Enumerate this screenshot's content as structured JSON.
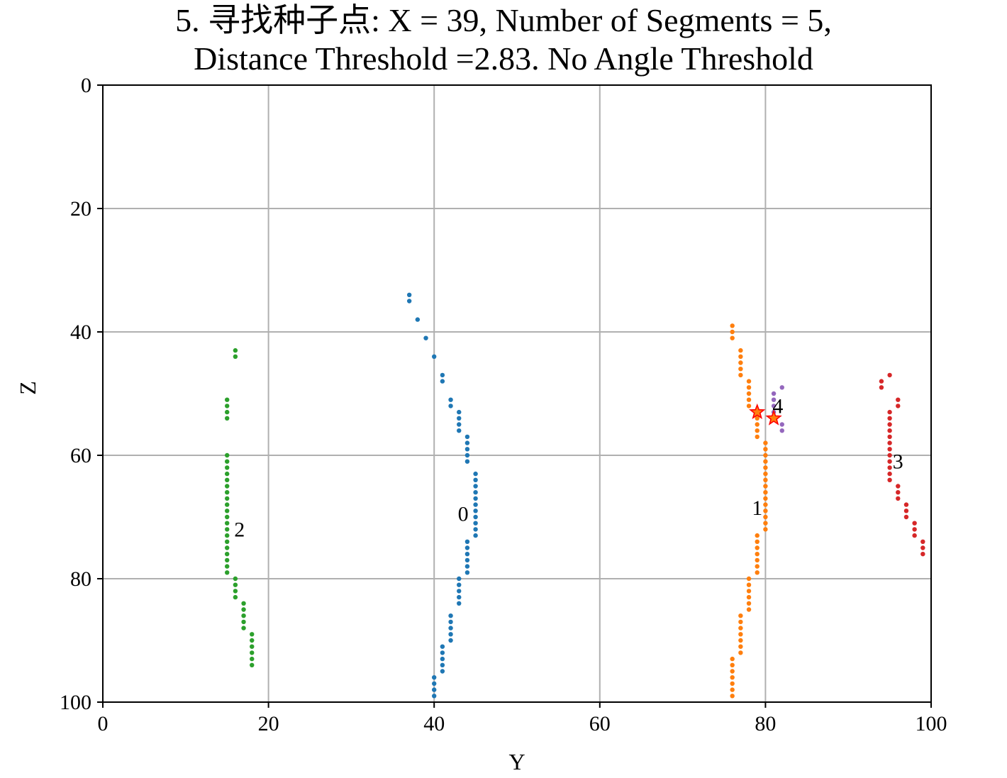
{
  "chart_data": {
    "type": "scatter",
    "title": "5. 寻找种子点: X = 39, Number of Segments = 5,",
    "subtitle": "Distance Threshold =2.83. No Angle Threshold",
    "xlabel": "Y",
    "ylabel": "Z",
    "xlim": [
      0,
      100
    ],
    "ylim": [
      0,
      100
    ],
    "y_inverted": true,
    "grid": true,
    "x_ticks": [
      "0",
      "20",
      "40",
      "60",
      "80",
      "100"
    ],
    "y_ticks": [
      "0",
      "20",
      "40",
      "60",
      "80",
      "100"
    ],
    "series": [
      {
        "label": "0",
        "color": "#1f77b4",
        "label_pos": [
          43.5,
          69.5
        ],
        "points": [
          [
            37,
            34
          ],
          [
            37,
            35
          ],
          [
            38,
            38
          ],
          [
            39,
            41
          ],
          [
            40,
            44
          ],
          [
            41,
            47
          ],
          [
            41,
            48
          ],
          [
            42,
            51
          ],
          [
            42,
            52
          ],
          [
            43,
            53
          ],
          [
            43,
            54
          ],
          [
            43,
            55
          ],
          [
            43,
            56
          ],
          [
            44,
            57
          ],
          [
            44,
            58
          ],
          [
            44,
            59
          ],
          [
            44,
            60
          ],
          [
            44,
            61
          ],
          [
            45,
            63
          ],
          [
            45,
            64
          ],
          [
            45,
            65
          ],
          [
            45,
            66
          ],
          [
            45,
            67
          ],
          [
            45,
            68
          ],
          [
            45,
            69
          ],
          [
            45,
            70
          ],
          [
            45,
            71
          ],
          [
            45,
            72
          ],
          [
            45,
            73
          ],
          [
            44,
            74
          ],
          [
            44,
            75
          ],
          [
            44,
            76
          ],
          [
            44,
            77
          ],
          [
            44,
            78
          ],
          [
            44,
            79
          ],
          [
            43,
            80
          ],
          [
            43,
            81
          ],
          [
            43,
            82
          ],
          [
            43,
            83
          ],
          [
            43,
            84
          ],
          [
            42,
            86
          ],
          [
            42,
            87
          ],
          [
            42,
            88
          ],
          [
            42,
            89
          ],
          [
            42,
            90
          ],
          [
            41,
            91
          ],
          [
            41,
            92
          ],
          [
            41,
            93
          ],
          [
            41,
            94
          ],
          [
            41,
            95
          ],
          [
            40,
            96
          ],
          [
            40,
            97
          ],
          [
            40,
            98
          ],
          [
            40,
            99
          ]
        ]
      },
      {
        "label": "1",
        "color": "#ff7f0e",
        "label_pos": [
          79,
          68.5
        ],
        "points": [
          [
            76,
            39
          ],
          [
            76,
            40
          ],
          [
            76,
            41
          ],
          [
            77,
            43
          ],
          [
            77,
            44
          ],
          [
            77,
            45
          ],
          [
            77,
            46
          ],
          [
            77,
            47
          ],
          [
            78,
            48
          ],
          [
            78,
            49
          ],
          [
            78,
            50
          ],
          [
            78,
            51
          ],
          [
            78,
            52
          ],
          [
            79,
            54
          ],
          [
            79,
            55
          ],
          [
            79,
            56
          ],
          [
            79,
            57
          ],
          [
            80,
            58
          ],
          [
            80,
            59
          ],
          [
            80,
            60
          ],
          [
            80,
            61
          ],
          [
            80,
            62
          ],
          [
            80,
            63
          ],
          [
            80,
            64
          ],
          [
            80,
            65
          ],
          [
            80,
            66
          ],
          [
            80,
            67
          ],
          [
            80,
            68
          ],
          [
            80,
            69
          ],
          [
            80,
            70
          ],
          [
            80,
            71
          ],
          [
            80,
            72
          ],
          [
            79,
            73
          ],
          [
            79,
            74
          ],
          [
            79,
            75
          ],
          [
            79,
            76
          ],
          [
            79,
            77
          ],
          [
            79,
            78
          ],
          [
            79,
            79
          ],
          [
            78,
            80
          ],
          [
            78,
            81
          ],
          [
            78,
            82
          ],
          [
            78,
            83
          ],
          [
            78,
            84
          ],
          [
            78,
            85
          ],
          [
            77,
            86
          ],
          [
            77,
            87
          ],
          [
            77,
            88
          ],
          [
            77,
            89
          ],
          [
            77,
            90
          ],
          [
            77,
            91
          ],
          [
            77,
            92
          ],
          [
            76,
            93
          ],
          [
            76,
            94
          ],
          [
            76,
            95
          ],
          [
            76,
            96
          ],
          [
            76,
            97
          ],
          [
            76,
            98
          ],
          [
            76,
            99
          ]
        ]
      },
      {
        "label": "2",
        "color": "#2ca02c",
        "label_pos": [
          16.5,
          72
        ],
        "points": [
          [
            16,
            43
          ],
          [
            16,
            44
          ],
          [
            15,
            51
          ],
          [
            15,
            52
          ],
          [
            15,
            53
          ],
          [
            15,
            54
          ],
          [
            15,
            60
          ],
          [
            15,
            61
          ],
          [
            15,
            62
          ],
          [
            15,
            63
          ],
          [
            15,
            64
          ],
          [
            15,
            65
          ],
          [
            15,
            66
          ],
          [
            15,
            67
          ],
          [
            15,
            68
          ],
          [
            15,
            69
          ],
          [
            15,
            70
          ],
          [
            15,
            71
          ],
          [
            15,
            72
          ],
          [
            15,
            73
          ],
          [
            15,
            74
          ],
          [
            15,
            75
          ],
          [
            15,
            76
          ],
          [
            15,
            77
          ],
          [
            15,
            78
          ],
          [
            15,
            79
          ],
          [
            16,
            80
          ],
          [
            16,
            81
          ],
          [
            16,
            82
          ],
          [
            16,
            83
          ],
          [
            17,
            84
          ],
          [
            17,
            85
          ],
          [
            17,
            86
          ],
          [
            17,
            87
          ],
          [
            17,
            88
          ],
          [
            18,
            89
          ],
          [
            18,
            90
          ],
          [
            18,
            91
          ],
          [
            18,
            92
          ],
          [
            18,
            93
          ],
          [
            18,
            94
          ]
        ]
      },
      {
        "label": "3",
        "color": "#d62728",
        "label_pos": [
          96,
          61
        ],
        "points": [
          [
            94,
            48
          ],
          [
            94,
            49
          ],
          [
            95,
            47
          ],
          [
            96,
            51
          ],
          [
            96,
            52
          ],
          [
            95,
            53
          ],
          [
            95,
            54
          ],
          [
            95,
            55
          ],
          [
            95,
            56
          ],
          [
            95,
            57
          ],
          [
            95,
            58
          ],
          [
            95,
            59
          ],
          [
            95,
            60
          ],
          [
            95,
            61
          ],
          [
            95,
            62
          ],
          [
            95,
            63
          ],
          [
            95,
            64
          ],
          [
            96,
            65
          ],
          [
            96,
            66
          ],
          [
            96,
            67
          ],
          [
            97,
            68
          ],
          [
            97,
            69
          ],
          [
            97,
            70
          ],
          [
            98,
            71
          ],
          [
            98,
            72
          ],
          [
            98,
            73
          ],
          [
            99,
            74
          ],
          [
            99,
            75
          ],
          [
            99,
            76
          ]
        ]
      },
      {
        "label": "4",
        "color": "#9467bd",
        "label_pos": [
          81.5,
          52
        ],
        "points": [
          [
            81,
            50
          ],
          [
            81,
            51
          ],
          [
            81,
            52
          ],
          [
            81,
            53
          ],
          [
            81,
            54
          ],
          [
            82,
            49
          ],
          [
            82,
            55
          ],
          [
            82,
            56
          ]
        ]
      }
    ],
    "seed_points": {
      "marker": "star",
      "fill": "#ff7f0e",
      "edge": "#ff0000",
      "points": [
        [
          79,
          53
        ],
        [
          81,
          54
        ]
      ]
    }
  }
}
